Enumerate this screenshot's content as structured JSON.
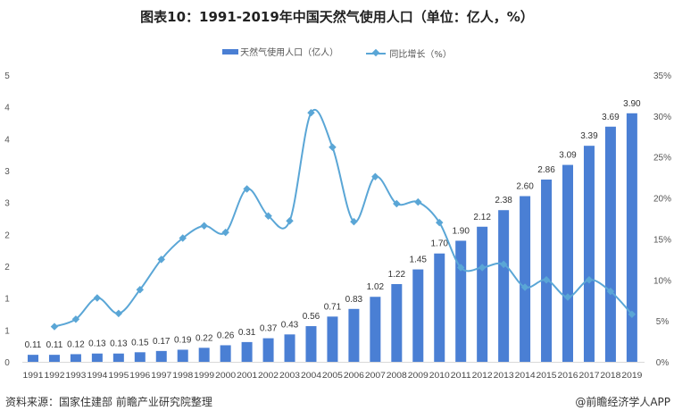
{
  "chart_data": {
    "type": "bar+line",
    "title": "图表10：1991-2019年中国天然气使用人口（单位：亿人，%）",
    "categories": [
      "1991",
      "1992",
      "1993",
      "1994",
      "1995",
      "1996",
      "1997",
      "1998",
      "1999",
      "2000",
      "2001",
      "2002",
      "2003",
      "2004",
      "2005",
      "2006",
      "2007",
      "2008",
      "2009",
      "2010",
      "2011",
      "2012",
      "2013",
      "2014",
      "2015",
      "2016",
      "2017",
      "2018",
      "2019"
    ],
    "series": [
      {
        "name": "天然气使用人口（亿人）",
        "type": "bar",
        "axis": "left",
        "color": "#4a7fd4",
        "values": [
          0.11,
          0.11,
          0.12,
          0.13,
          0.13,
          0.15,
          0.17,
          0.19,
          0.22,
          0.26,
          0.31,
          0.37,
          0.43,
          0.56,
          0.71,
          0.83,
          1.02,
          1.22,
          1.45,
          1.7,
          1.9,
          2.12,
          2.38,
          2.6,
          2.86,
          3.09,
          3.39,
          3.69,
          3.9
        ],
        "labels": [
          "0.11",
          "0.11",
          "0.12",
          "0.13",
          "0.13",
          "0.15",
          "0.17",
          "0.19",
          "0.22",
          "0.26",
          "0.31",
          "0.37",
          "0.43",
          "0.56",
          "0.71",
          "0.83",
          "1.02",
          "1.22",
          "1.45",
          "1.70",
          "1.90",
          "2.12",
          "2.38",
          "2.60",
          "2.86",
          "3.09",
          "3.39",
          "3.69",
          "3.90"
        ]
      },
      {
        "name": "同比增长（%）",
        "type": "line",
        "axis": "right",
        "color": "#5aa6d6",
        "values": [
          null,
          4.3,
          5.2,
          7.8,
          5.9,
          8.8,
          12.5,
          15.1,
          16.6,
          15.8,
          21.1,
          17.8,
          17.2,
          30.4,
          26.2,
          17.1,
          22.6,
          19.3,
          19.5,
          17.0,
          11.5,
          11.5,
          11.9,
          9.1,
          10.0,
          7.9,
          10.0,
          8.6,
          5.8
        ]
      }
    ],
    "y_left": {
      "range": [
        0,
        4.5
      ],
      "ticks": [
        0,
        0.5,
        1,
        1.5,
        2,
        2.5,
        3,
        3.5,
        4,
        4.5
      ],
      "tick_labels": [
        "0",
        "1",
        "1",
        "2",
        "2",
        "3",
        "3",
        "4",
        "4",
        "5"
      ]
    },
    "y_right": {
      "range": [
        0,
        35
      ],
      "ticks": [
        0,
        5,
        10,
        15,
        20,
        25,
        30,
        35
      ],
      "tick_labels": [
        "0%",
        "5%",
        "10%",
        "15%",
        "20%",
        "25%",
        "30%",
        "35%"
      ]
    },
    "legend": "top-center",
    "grid": false
  },
  "legend": {
    "bar": "天然气使用人口（亿人）",
    "line": "同比增长（%）"
  },
  "footer": {
    "source": "资料来源：国家住建部 前瞻产业研究院整理",
    "credit": "@前瞻经济学人APP"
  }
}
